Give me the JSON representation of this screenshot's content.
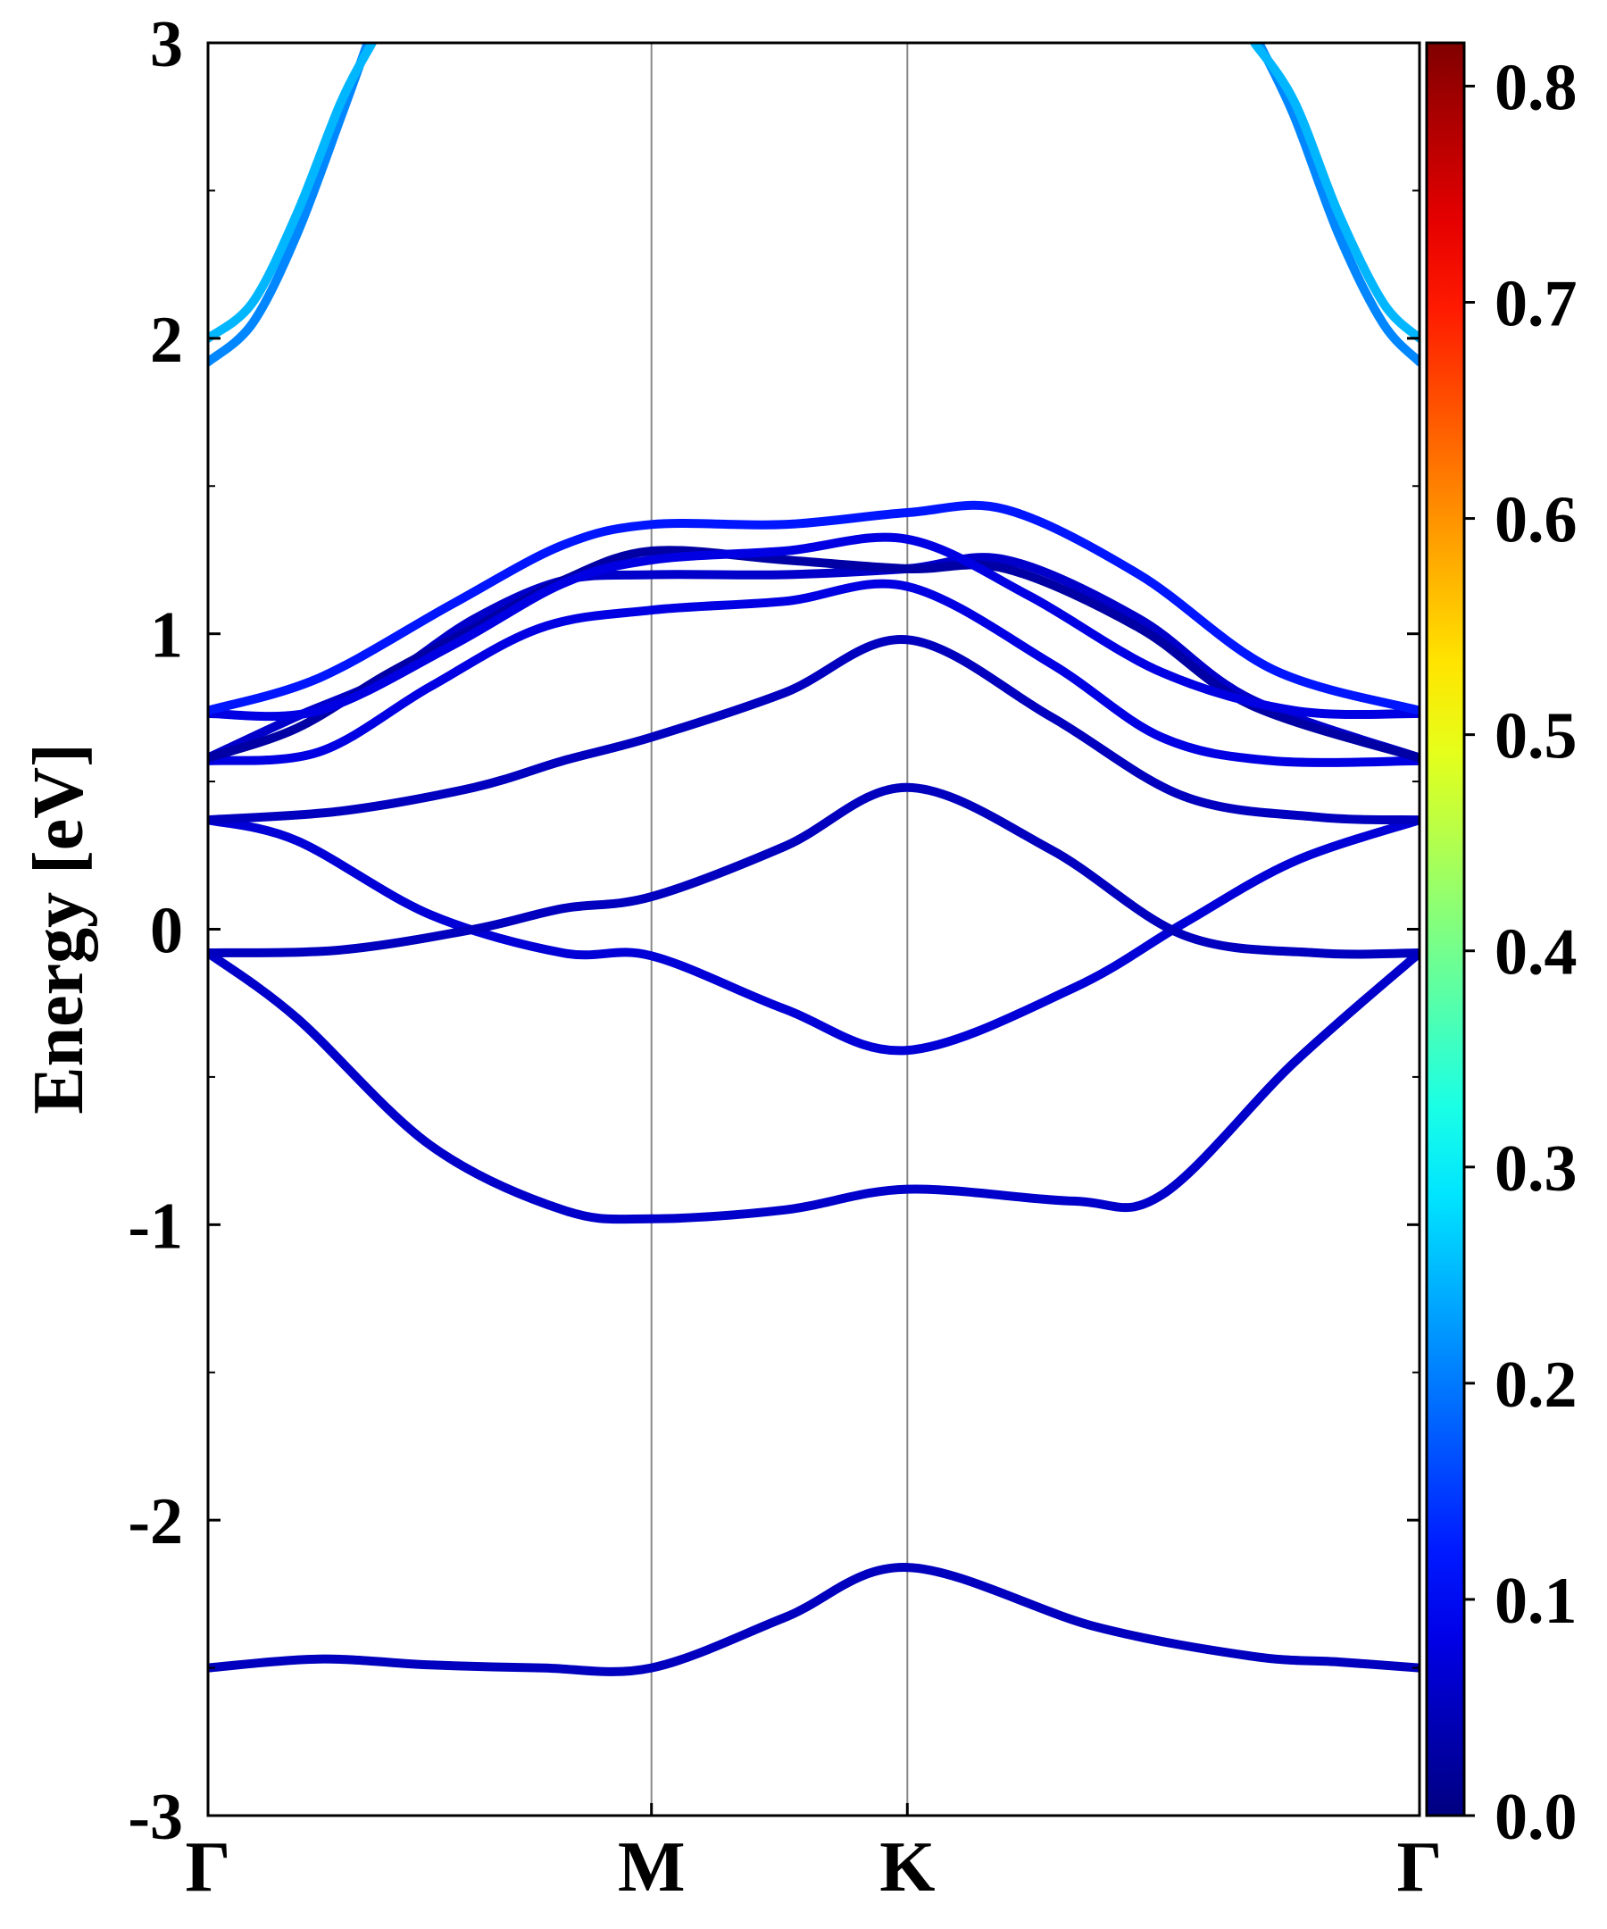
{
  "chart_data": {
    "type": "line",
    "ylabel": "Energy [eV]",
    "xlabel": "",
    "ylim": [
      -3,
      3
    ],
    "y_ticks": [
      "-3",
      "-2",
      "-1",
      "0",
      "1",
      "2",
      "3"
    ],
    "k_path": [
      "Γ",
      "M",
      "K",
      "Γ"
    ],
    "k_positions": [
      0,
      1,
      1.577,
      2.732
    ],
    "colorbar": {
      "colormap": "jet",
      "range": [
        0,
        0.82
      ],
      "ticks": [
        "0.0",
        "0.1",
        "0.2",
        "0.3",
        "0.4",
        "0.5",
        "0.6",
        "0.7",
        "0.8"
      ]
    },
    "bands": [
      {
        "x": [
          0,
          0.25,
          0.5,
          0.75,
          1,
          1.3,
          1.577,
          2,
          2.35,
          2.55,
          2.732
        ],
        "y": [
          -2.5,
          -2.47,
          -2.49,
          -2.5,
          -2.5,
          -2.33,
          -2.16,
          -2.36,
          -2.46,
          -2.48,
          -2.5
        ],
        "weight": 0.05
      },
      {
        "x": [
          0,
          0.2,
          0.5,
          0.8,
          1,
          1.3,
          1.577,
          1.95,
          2.15,
          2.45,
          2.732
        ],
        "y": [
          -0.08,
          -0.3,
          -0.73,
          -0.95,
          -0.98,
          -0.95,
          -0.88,
          -0.92,
          -0.9,
          -0.45,
          -0.08
        ],
        "weight": 0.06
      },
      {
        "x": [
          0,
          0.2,
          0.5,
          0.8,
          1,
          1.3,
          1.577,
          1.95,
          2.2,
          2.45,
          2.732
        ],
        "y": [
          0.37,
          0.3,
          0.05,
          -0.08,
          -0.09,
          -0.27,
          -0.41,
          -0.2,
          0.02,
          0.23,
          0.37
        ],
        "weight": 0.07
      },
      {
        "x": [
          0,
          0.3,
          0.6,
          0.8,
          1,
          1.3,
          1.577,
          1.9,
          2.2,
          2.5,
          2.732
        ],
        "y": [
          -0.08,
          -0.07,
          0.0,
          0.07,
          0.11,
          0.28,
          0.48,
          0.27,
          -0.02,
          -0.08,
          -0.08
        ],
        "weight": 0.05
      },
      {
        "x": [
          0,
          0.3,
          0.6,
          0.8,
          1,
          1.3,
          1.577,
          1.9,
          2.2,
          2.5,
          2.732
        ],
        "y": [
          0.37,
          0.4,
          0.48,
          0.57,
          0.65,
          0.8,
          0.98,
          0.72,
          0.45,
          0.38,
          0.37
        ],
        "weight": 0.05
      },
      {
        "x": [
          0,
          0.25,
          0.5,
          0.75,
          1,
          1.3,
          1.577,
          1.9,
          2.15,
          2.4,
          2.732
        ],
        "y": [
          0.57,
          0.6,
          0.82,
          1.02,
          1.08,
          1.11,
          1.16,
          0.9,
          0.65,
          0.57,
          0.57
        ],
        "weight": 0.08
      },
      {
        "x": [
          0,
          0.2,
          0.4,
          0.6,
          0.8,
          1,
          1.3,
          1.577,
          1.8,
          2.1,
          2.35,
          2.732
        ],
        "y": [
          0.58,
          0.72,
          0.85,
          1.05,
          1.18,
          1.2,
          1.2,
          1.22,
          1.25,
          1.05,
          0.78,
          0.58
        ],
        "weight": 0.06
      },
      {
        "x": [
          0,
          0.2,
          0.4,
          0.6,
          0.8,
          1,
          1.3,
          1.577,
          1.8,
          2.1,
          2.35,
          2.732
        ],
        "y": [
          0.58,
          0.68,
          0.86,
          1.02,
          1.18,
          1.28,
          1.25,
          1.22,
          1.22,
          1.02,
          0.76,
          0.58
        ],
        "weight": 0.03
      },
      {
        "x": [
          0,
          0.25,
          0.55,
          0.8,
          1,
          1.3,
          1.577,
          1.85,
          2.15,
          2.45,
          2.732
        ],
        "y": [
          0.73,
          0.74,
          0.96,
          1.17,
          1.25,
          1.28,
          1.32,
          1.13,
          0.87,
          0.74,
          0.73
        ],
        "weight": 0.08
      },
      {
        "x": [
          0,
          0.25,
          0.55,
          0.8,
          1,
          1.3,
          1.577,
          1.8,
          2.1,
          2.4,
          2.732
        ],
        "y": [
          0.74,
          0.85,
          1.1,
          1.3,
          1.37,
          1.37,
          1.41,
          1.42,
          1.2,
          0.88,
          0.74
        ],
        "weight": 0.12
      },
      {
        "x": [
          0,
          0.1,
          0.2,
          0.3,
          0.36
        ],
        "y": [
          1.92,
          2.05,
          2.35,
          2.75,
          3.0
        ],
        "weight": 0.21
      },
      {
        "x": [
          0,
          0.1,
          0.2,
          0.3,
          0.37
        ],
        "y": [
          2.0,
          2.12,
          2.42,
          2.8,
          3.0
        ],
        "weight": 0.25
      },
      {
        "x": [
          2.37,
          2.45,
          2.55,
          2.65,
          2.732
        ],
        "y": [
          3.0,
          2.75,
          2.35,
          2.05,
          1.92
        ],
        "weight": 0.21
      },
      {
        "x": [
          2.36,
          2.45,
          2.55,
          2.65,
          2.732
        ],
        "y": [
          3.0,
          2.8,
          2.42,
          2.12,
          2.0
        ],
        "weight": 0.25
      }
    ]
  }
}
